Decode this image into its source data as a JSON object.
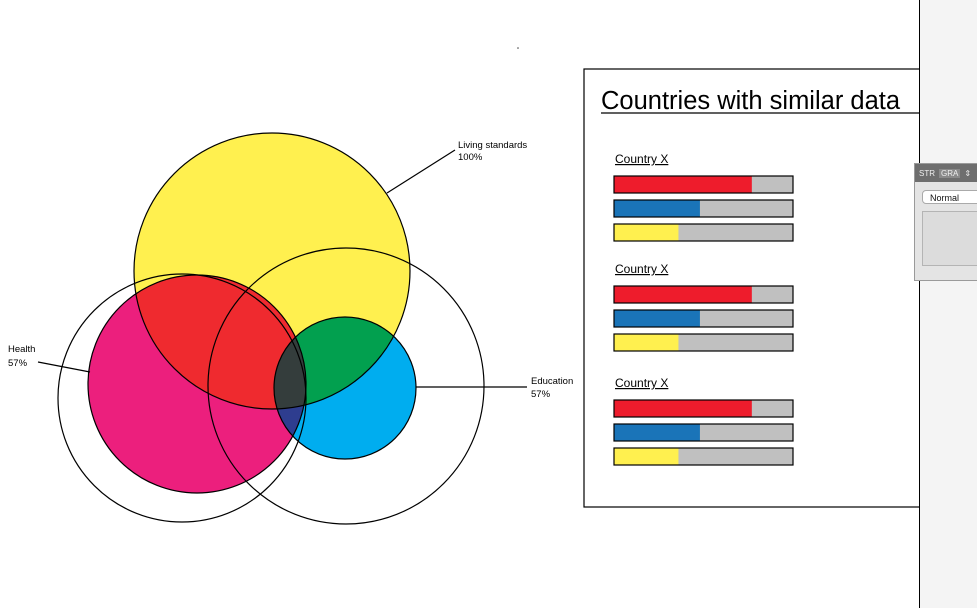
{
  "venn": {
    "sets": [
      {
        "name": "Living standards",
        "value_label": "100%",
        "color": "#fff04f"
      },
      {
        "name": "Health",
        "value_label": "57%",
        "color": "#ec1f7d"
      },
      {
        "name": "Education",
        "value_label": "57%",
        "color": "#00adef"
      }
    ],
    "overlap_colors": {
      "living_health": "#ef2a2f",
      "living_education": "#02a04f",
      "all": "#343d3c",
      "health_education": "#2e3d8f"
    }
  },
  "comparison": {
    "title": "Countries with similar data",
    "countries": [
      {
        "label": "Country X",
        "bars": [
          {
            "color": "#ee1c2c",
            "value": 0.77
          },
          {
            "color": "#1a74b8",
            "value": 0.48
          },
          {
            "color": "#fff04f",
            "value": 0.36
          }
        ]
      },
      {
        "label": "Country X",
        "bars": [
          {
            "color": "#ee1c2c",
            "value": 0.77
          },
          {
            "color": "#1a74b8",
            "value": 0.48
          },
          {
            "color": "#fff04f",
            "value": 0.36
          }
        ]
      },
      {
        "label": "Country X",
        "bars": [
          {
            "color": "#ee1c2c",
            "value": 0.77
          },
          {
            "color": "#1a74b8",
            "value": 0.48
          },
          {
            "color": "#fff04f",
            "value": 0.36
          }
        ]
      }
    ],
    "bar_track_color": "#c0c0c0"
  },
  "panel": {
    "tabs": [
      "STR",
      "GRA"
    ],
    "menu_icon": "double-arrow-icon",
    "mode_select": "Normal"
  }
}
